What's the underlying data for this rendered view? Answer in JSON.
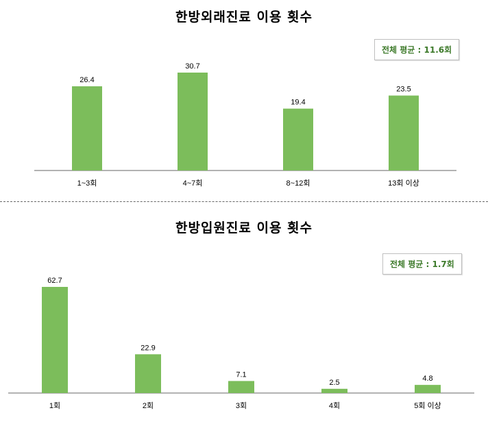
{
  "chart_data": [
    {
      "type": "bar",
      "title": "한방외래진료 이용 횟수",
      "annotation": "전체 평균 : 11.6회",
      "categories": [
        "1~3회",
        "4~7회",
        "8~12회",
        "13회 이상"
      ],
      "values": [
        26.4,
        30.7,
        19.4,
        23.5
      ],
      "ylim": [
        0,
        30.7
      ],
      "grid": false,
      "bar_color": "#7cbd5b"
    },
    {
      "type": "bar",
      "title": "한방입원진료 이용 횟수",
      "annotation": "전체 평균 : 1.7회",
      "categories": [
        "1회",
        "2회",
        "3회",
        "4회",
        "5회 이상"
      ],
      "values": [
        62.7,
        22.9,
        7.1,
        2.5,
        4.8
      ],
      "ylim": [
        0,
        62.7
      ],
      "grid": false,
      "bar_color": "#7cbd5b"
    }
  ]
}
